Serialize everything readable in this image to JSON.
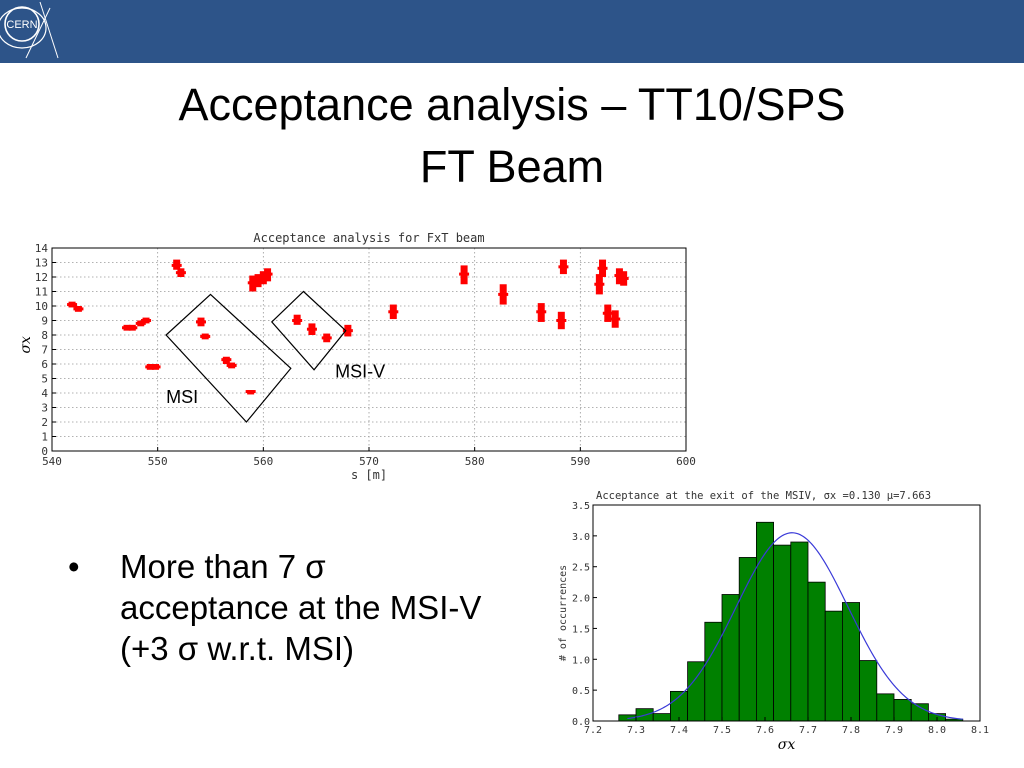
{
  "slide": {
    "logo_text": "CERN",
    "title_line1": "Acceptance analysis – TT10/SPS",
    "title_line2": "FT Beam",
    "bullet_symbol": "•",
    "bullet_lines": [
      "More than 7 σ",
      "acceptance at the MSI-V",
      "(+3 σ w.r.t. MSI)"
    ],
    "annotations": {
      "msi_label": "MSI",
      "msiv_label": "MSI-V"
    }
  },
  "colors": {
    "header": "#2d5489",
    "scatter": "#ff0000",
    "bars": "#008000",
    "fit": "#3a3ad8"
  },
  "chart_data": [
    {
      "type": "scatter",
      "title": "Acceptance analysis for FxT beam",
      "xlabel": "s [m]",
      "ylabel": "σx",
      "xlim": [
        540,
        600
      ],
      "ylim": [
        0,
        14
      ],
      "xticks": [
        540,
        550,
        560,
        570,
        580,
        590,
        600
      ],
      "yticks": [
        0,
        1,
        2,
        3,
        4,
        5,
        6,
        7,
        8,
        9,
        10,
        11,
        12,
        13,
        14
      ],
      "grid": true,
      "points": [
        {
          "x": 541.9,
          "y": 10.1,
          "lo": 9.9,
          "hi": 10.3
        },
        {
          "x": 542.5,
          "y": 9.8,
          "lo": 9.6,
          "hi": 10.0
        },
        {
          "x": 547.1,
          "y": 8.5,
          "lo": 8.3,
          "hi": 8.7
        },
        {
          "x": 547.6,
          "y": 8.5,
          "lo": 8.3,
          "hi": 8.7
        },
        {
          "x": 548.4,
          "y": 8.8,
          "lo": 8.6,
          "hi": 9.0
        },
        {
          "x": 548.9,
          "y": 9.0,
          "lo": 8.8,
          "hi": 9.2
        },
        {
          "x": 549.3,
          "y": 5.8,
          "lo": 5.6,
          "hi": 6.0
        },
        {
          "x": 549.8,
          "y": 5.8,
          "lo": 5.6,
          "hi": 6.0
        },
        {
          "x": 551.8,
          "y": 12.8,
          "lo": 12.5,
          "hi": 13.2
        },
        {
          "x": 552.2,
          "y": 12.3,
          "lo": 12.0,
          "hi": 12.6
        },
        {
          "x": 554.1,
          "y": 8.9,
          "lo": 8.6,
          "hi": 9.2
        },
        {
          "x": 554.5,
          "y": 7.9,
          "lo": 7.7,
          "hi": 8.1
        },
        {
          "x": 556.5,
          "y": 6.3,
          "lo": 6.0,
          "hi": 6.5
        },
        {
          "x": 557.0,
          "y": 5.9,
          "lo": 5.7,
          "hi": 6.1
        },
        {
          "x": 558.8,
          "y": 4.1,
          "lo": 3.9,
          "hi": 4.2
        },
        {
          "x": 559.0,
          "y": 11.6,
          "lo": 11.0,
          "hi": 12.1
        },
        {
          "x": 559.5,
          "y": 11.8,
          "lo": 11.3,
          "hi": 12.2
        },
        {
          "x": 560.0,
          "y": 12.0,
          "lo": 11.5,
          "hi": 12.4
        },
        {
          "x": 560.4,
          "y": 12.2,
          "lo": 11.7,
          "hi": 12.6
        },
        {
          "x": 563.2,
          "y": 9.0,
          "lo": 8.7,
          "hi": 9.4
        },
        {
          "x": 564.6,
          "y": 8.4,
          "lo": 8.0,
          "hi": 8.8
        },
        {
          "x": 566.0,
          "y": 7.8,
          "lo": 7.5,
          "hi": 8.1
        },
        {
          "x": 568.0,
          "y": 8.3,
          "lo": 7.9,
          "hi": 8.7
        },
        {
          "x": 572.3,
          "y": 9.6,
          "lo": 9.1,
          "hi": 10.1
        },
        {
          "x": 579.0,
          "y": 12.2,
          "lo": 11.5,
          "hi": 12.8
        },
        {
          "x": 582.7,
          "y": 10.8,
          "lo": 10.1,
          "hi": 11.5
        },
        {
          "x": 586.3,
          "y": 9.6,
          "lo": 8.9,
          "hi": 10.2
        },
        {
          "x": 588.2,
          "y": 9.0,
          "lo": 8.4,
          "hi": 9.6
        },
        {
          "x": 588.4,
          "y": 12.7,
          "lo": 12.2,
          "hi": 13.2
        },
        {
          "x": 591.8,
          "y": 11.5,
          "lo": 10.8,
          "hi": 12.2
        },
        {
          "x": 592.1,
          "y": 12.6,
          "lo": 12.0,
          "hi": 13.2
        },
        {
          "x": 592.6,
          "y": 9.5,
          "lo": 8.9,
          "hi": 10.1
        },
        {
          "x": 593.3,
          "y": 9.1,
          "lo": 8.5,
          "hi": 9.7
        },
        {
          "x": 593.7,
          "y": 12.1,
          "lo": 11.5,
          "hi": 12.6
        },
        {
          "x": 594.1,
          "y": 11.9,
          "lo": 11.4,
          "hi": 12.4
        }
      ],
      "regions": [
        {
          "name": "MSI",
          "corners": [
            [
              550.8,
              8.0
            ],
            [
              555.0,
              10.8
            ],
            [
              562.6,
              5.7
            ],
            [
              558.4,
              2.0
            ]
          ]
        },
        {
          "name": "MSI-V",
          "corners": [
            [
              560.8,
              8.9
            ],
            [
              563.8,
              11.0
            ],
            [
              567.8,
              8.3
            ],
            [
              564.8,
              5.6
            ]
          ]
        }
      ]
    },
    {
      "type": "bar",
      "title": "Acceptance at the exit of the MSIV, σx =0.130 μ=7.663",
      "xlabel": "σx",
      "ylabel": "# of occurrences",
      "xlim": [
        7.2,
        8.1
      ],
      "ylim": [
        0.0,
        3.5
      ],
      "xticks": [
        7.2,
        7.3,
        7.4,
        7.5,
        7.6,
        7.7,
        7.8,
        7.9,
        8.0,
        8.1
      ],
      "yticks": [
        0.0,
        0.5,
        1.0,
        1.5,
        2.0,
        2.5,
        3.0,
        3.5
      ],
      "bin_width": 0.04,
      "bins": [
        {
          "x": 7.28,
          "value": 0.1
        },
        {
          "x": 7.32,
          "value": 0.2
        },
        {
          "x": 7.36,
          "value": 0.12
        },
        {
          "x": 7.4,
          "value": 0.48
        },
        {
          "x": 7.44,
          "value": 0.96
        },
        {
          "x": 7.48,
          "value": 1.6
        },
        {
          "x": 7.52,
          "value": 2.05
        },
        {
          "x": 7.56,
          "value": 2.65
        },
        {
          "x": 7.6,
          "value": 3.22
        },
        {
          "x": 7.64,
          "value": 2.85
        },
        {
          "x": 7.68,
          "value": 2.9
        },
        {
          "x": 7.72,
          "value": 2.25
        },
        {
          "x": 7.76,
          "value": 1.78
        },
        {
          "x": 7.8,
          "value": 1.92
        },
        {
          "x": 7.84,
          "value": 0.98
        },
        {
          "x": 7.88,
          "value": 0.44
        },
        {
          "x": 7.92,
          "value": 0.35
        },
        {
          "x": 7.96,
          "value": 0.28
        },
        {
          "x": 8.0,
          "value": 0.12
        },
        {
          "x": 8.04,
          "value": 0.03
        }
      ],
      "fit": {
        "type": "gaussian",
        "mu": 7.663,
        "sigma": 0.13,
        "peak": 3.05
      }
    }
  ]
}
